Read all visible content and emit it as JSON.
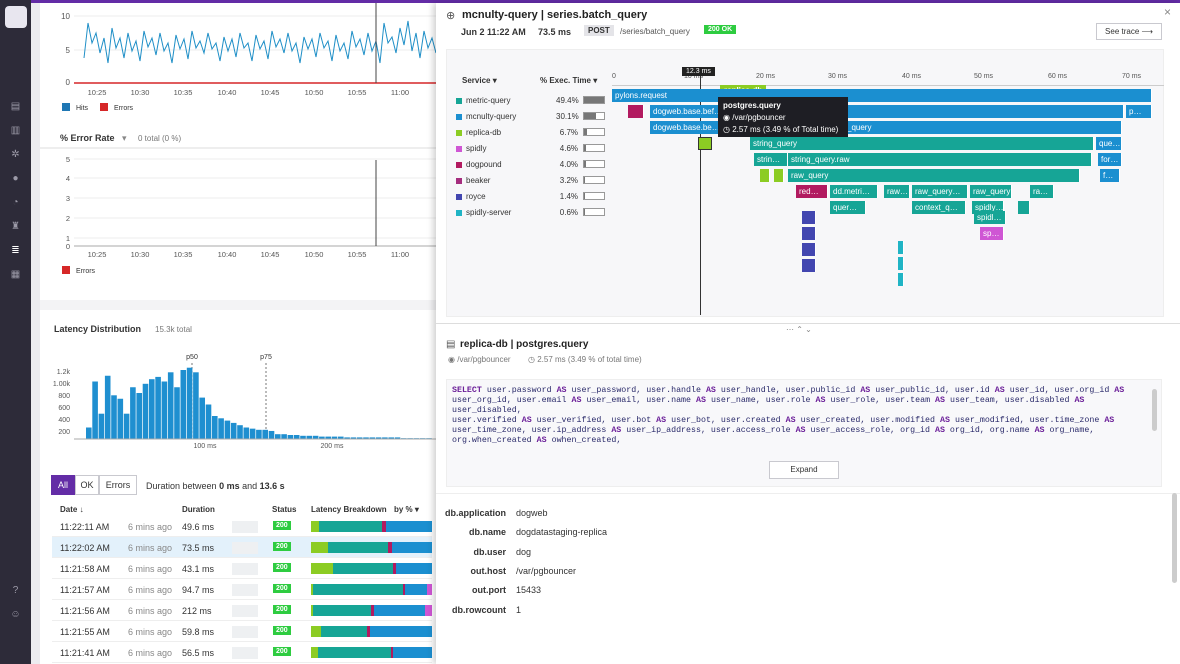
{
  "hits_chart": {
    "y_ticks": [
      "10",
      "5",
      "0"
    ],
    "x_ticks": [
      "10:25",
      "10:30",
      "10:35",
      "10:40",
      "10:45",
      "10:50",
      "10:55",
      "11:00"
    ],
    "legend": [
      {
        "label": "Hits",
        "color": "#1f77b4"
      },
      {
        "label": "Errors",
        "color": "#d62728"
      }
    ]
  },
  "error_chart": {
    "title": "% Error Rate",
    "total": "0 total (0 %)",
    "y_ticks": [
      "5",
      "4",
      "3",
      "2",
      "1",
      "0"
    ],
    "x_ticks": [
      "10:25",
      "10:30",
      "10:35",
      "10:40",
      "10:45",
      "10:50",
      "10:55",
      "11:00"
    ],
    "legend": "Errors"
  },
  "latency": {
    "title": "Latency Distribution",
    "total": "15.3k total",
    "y_ticks": [
      "1.2k",
      "1.00k",
      "800",
      "600",
      "400",
      "200"
    ],
    "x_ticks": [
      "100 ms",
      "200 ms"
    ],
    "markers": [
      "p50",
      "p75"
    ]
  },
  "filters": {
    "all": "All",
    "ok": "OK",
    "errors": "Errors",
    "duration_prefix": "Duration between",
    "duration_min": "0 ms",
    "duration_and": "and",
    "duration_max": "13.6 s"
  },
  "table": {
    "headers": {
      "date": "Date ↓",
      "duration": "Duration",
      "status": "Status",
      "breakdown": "Latency Breakdown",
      "by": "by %"
    },
    "rows": [
      {
        "date": "11:22:11 AM",
        "ago": "6 mins ago",
        "duration": "49.6 ms",
        "status": "200"
      },
      {
        "date": "11:22:02 AM",
        "ago": "6 mins ago",
        "duration": "73.5 ms",
        "status": "200"
      },
      {
        "date": "11:21:58 AM",
        "ago": "6 mins ago",
        "duration": "43.1 ms",
        "status": "200"
      },
      {
        "date": "11:21:57 AM",
        "ago": "6 mins ago",
        "duration": "94.7 ms",
        "status": "200"
      },
      {
        "date": "11:21:56 AM",
        "ago": "6 mins ago",
        "duration": "212 ms",
        "status": "200"
      },
      {
        "date": "11:21:55 AM",
        "ago": "6 mins ago",
        "duration": "59.8 ms",
        "status": "200"
      },
      {
        "date": "11:21:41 AM",
        "ago": "6 mins ago",
        "duration": "56.5 ms",
        "status": "200"
      }
    ]
  },
  "trace": {
    "title": "mcnulty-query | series.batch_query",
    "date": "Jun 2 11:22 AM",
    "duration": "73.5 ms",
    "method": "POST",
    "path": "/series/batch_query",
    "status": "200 OK",
    "see_trace": "See trace ⟶",
    "close": "×"
  },
  "services": {
    "header_service": "Service ▾",
    "header_exec": "% Exec. Time ▾",
    "items": [
      {
        "name": "metric-query",
        "pct": "49.4%",
        "color": "#16a596"
      },
      {
        "name": "mcnulty-query",
        "pct": "30.1%",
        "color": "#1b8fd0"
      },
      {
        "name": "replica-db",
        "pct": "6.7%",
        "color": "#8ccc23"
      },
      {
        "name": "spidly",
        "pct": "4.6%",
        "color": "#cf56d4"
      },
      {
        "name": "dogpound",
        "pct": "4.0%",
        "color": "#b21a60"
      },
      {
        "name": "beaker",
        "pct": "3.2%",
        "color": "#a52d7e"
      },
      {
        "name": "royce",
        "pct": "1.4%",
        "color": "#4246b0"
      },
      {
        "name": "spidly-server",
        "pct": "0.6%",
        "color": "#20b4c5"
      }
    ]
  },
  "timeline": {
    "ticks": [
      "0",
      "10 ms",
      "20 ms",
      "30 ms",
      "40 ms",
      "50 ms",
      "60 ms",
      "70 ms"
    ],
    "cursor": "12.3 ms",
    "tooltip_title": "postgres.query",
    "tooltip_resource": "/var/pgbouncer",
    "tooltip_time": "2.57 ms (3.49 % of Total time)",
    "hover_label": "replica-db"
  },
  "flame": {
    "pylons": "pylons.request",
    "dogweb1": "dogweb.base.bef…",
    "dogweb2": "dogweb.base.be…",
    "c_query": "c_query",
    "p": "p…",
    "string_query": "string_query",
    "que": "que…",
    "strin": "strin…",
    "string_query_raw": "string_query.raw",
    "for": "for…",
    "raw_query": "raw_query",
    "f": "f…",
    "red": "red…",
    "dd_metri": "dd.metri…",
    "raw1": "raw…",
    "raw_query2": "raw_query…",
    "raw_query3": "raw_query…",
    "ra": "ra…",
    "quer": "quer…",
    "context_q": "context_q…",
    "spidly1": "spidly…",
    "spidl": "spidl…",
    "sp": "sp…"
  },
  "span": {
    "title": "replica-db | postgres.query",
    "resource": "/var/pgbouncer",
    "time": "2.57 ms (3.49 % of total time)",
    "expand": "Expand"
  },
  "sql": {
    "lines": [
      [
        [
          "k",
          "SELECT"
        ],
        [
          "t",
          " user.password "
        ],
        [
          "k",
          "AS"
        ],
        [
          "t",
          " user_password, user.handle "
        ],
        [
          "k",
          "AS"
        ],
        [
          "t",
          " user_handle, user.public_id "
        ],
        [
          "k",
          "AS"
        ],
        [
          "t",
          " user_public_id, user.id "
        ],
        [
          "k",
          "AS"
        ],
        [
          "t",
          " user_id, user.org_id "
        ],
        [
          "k",
          "AS"
        ]
      ],
      [
        [
          "t",
          "user_org_id, user.email "
        ],
        [
          "k",
          "AS"
        ],
        [
          "t",
          " user_email, user.name "
        ],
        [
          "k",
          "AS"
        ],
        [
          "t",
          " user_name, user.role "
        ],
        [
          "k",
          "AS"
        ],
        [
          "t",
          " user_role, user.team "
        ],
        [
          "k",
          "AS"
        ],
        [
          "t",
          " user_team, user.disabled "
        ],
        [
          "k",
          "AS"
        ],
        [
          "t",
          " user_disabled,"
        ]
      ],
      [
        [
          "t",
          "user.verified "
        ],
        [
          "k",
          "AS"
        ],
        [
          "t",
          " user_verified, user.bot "
        ],
        [
          "k",
          "AS"
        ],
        [
          "t",
          " user_bot, user.created "
        ],
        [
          "k",
          "AS"
        ],
        [
          "t",
          " user_created, user.modified "
        ],
        [
          "k",
          "AS"
        ],
        [
          "t",
          " user_modified, user.time_zone "
        ],
        [
          "k",
          "AS"
        ]
      ],
      [
        [
          "t",
          "user_time_zone, user.ip_address "
        ],
        [
          "k",
          "AS"
        ],
        [
          "t",
          " user_ip_address, user.access_role "
        ],
        [
          "k",
          "AS"
        ],
        [
          "t",
          " user_access_role, org_id "
        ],
        [
          "k",
          "AS"
        ],
        [
          "t",
          " org_id, org.name "
        ],
        [
          "k",
          "AS"
        ],
        [
          "t",
          " org_name,"
        ]
      ],
      [
        [
          "t",
          "org.when_created "
        ],
        [
          "k",
          "AS"
        ],
        [
          "t",
          " owhen_created,"
        ]
      ]
    ]
  },
  "meta": [
    {
      "key": "db.application",
      "value": "dogweb"
    },
    {
      "key": "db.name",
      "value": "dogdatastaging-replica"
    },
    {
      "key": "db.user",
      "value": "dog"
    },
    {
      "key": "out.host",
      "value": "/var/pgbouncer"
    },
    {
      "key": "out.port",
      "value": "15433"
    },
    {
      "key": "db.rowcount",
      "value": "1"
    }
  ]
}
